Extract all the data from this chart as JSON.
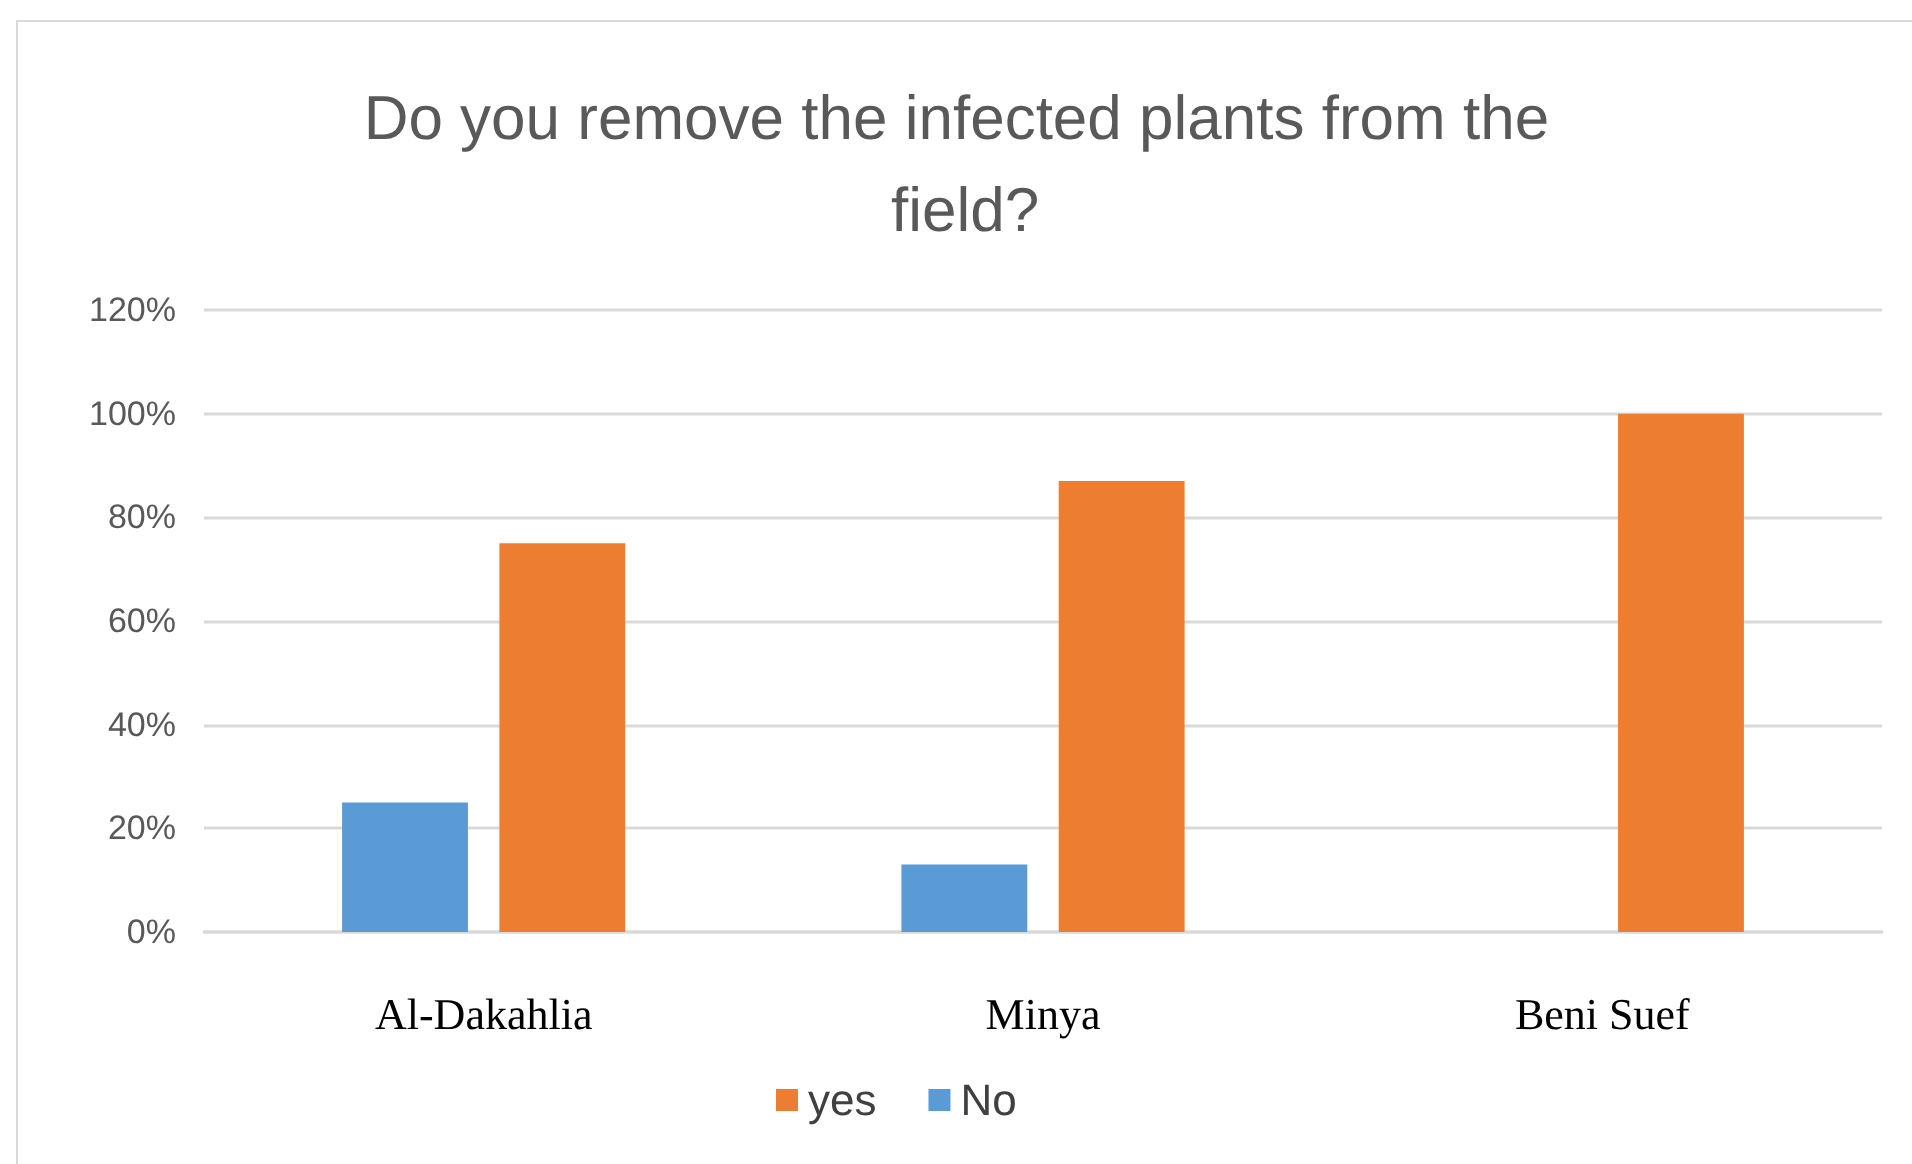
{
  "chart_data": {
    "type": "bar",
    "title": "Do you remove the infected plants from the field?",
    "categories": [
      "Al-Dakahlia",
      "Minya",
      "Beni Suef"
    ],
    "series": [
      {
        "name": "No",
        "color": "#5b9bd5",
        "values": [
          25,
          13,
          0
        ]
      },
      {
        "name": "yes",
        "color": "#ed7d31",
        "values": [
          75,
          87,
          100
        ]
      }
    ],
    "ylim": [
      0,
      120
    ],
    "yticks": [
      {
        "value": 0,
        "label": "0%"
      },
      {
        "value": 20,
        "label": "20%"
      },
      {
        "value": 40,
        "label": "40%"
      },
      {
        "value": 60,
        "label": "60%"
      },
      {
        "value": 80,
        "label": "80%"
      },
      {
        "value": 100,
        "label": "100%"
      },
      {
        "value": 120,
        "label": "120%"
      }
    ],
    "grid": "y",
    "legend": "bottom"
  }
}
